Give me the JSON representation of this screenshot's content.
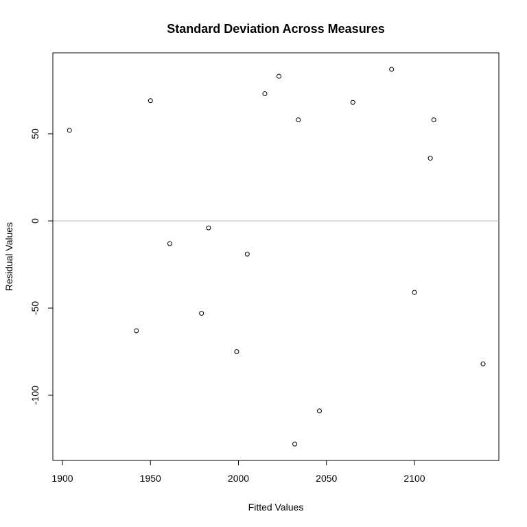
{
  "chart_data": {
    "type": "scatter",
    "title": "Standard Deviation Across Measures",
    "xlabel": "Fitted Values",
    "ylabel": "Residual Values",
    "xlim": [
      1900,
      2150
    ],
    "ylim": [
      -140,
      95
    ],
    "x_ticks": [
      1900,
      1950,
      2000,
      2050,
      2100
    ],
    "y_ticks": [
      -100,
      -50,
      0,
      50
    ],
    "x_tick_labels": [
      "1900",
      "1950",
      "2000",
      "2050",
      "2100"
    ],
    "y_tick_labels": [
      "-100",
      "-50",
      "0",
      "50"
    ],
    "reference_line": {
      "y": 0,
      "color": "#bebebe"
    },
    "grid": false,
    "points": [
      {
        "x": 1904,
        "y": 52
      },
      {
        "x": 1942,
        "y": -63
      },
      {
        "x": 1950,
        "y": 69
      },
      {
        "x": 1961,
        "y": -13
      },
      {
        "x": 1979,
        "y": -53
      },
      {
        "x": 1983,
        "y": -4
      },
      {
        "x": 1999,
        "y": -75
      },
      {
        "x": 2005,
        "y": -19
      },
      {
        "x": 2015,
        "y": 73
      },
      {
        "x": 2023,
        "y": 83
      },
      {
        "x": 2032,
        "y": -128
      },
      {
        "x": 2034,
        "y": 58
      },
      {
        "x": 2046,
        "y": -109
      },
      {
        "x": 2065,
        "y": 68
      },
      {
        "x": 2087,
        "y": 87
      },
      {
        "x": 2100,
        "y": -41
      },
      {
        "x": 2109,
        "y": 36
      },
      {
        "x": 2111,
        "y": 58
      },
      {
        "x": 2139,
        "y": -82
      }
    ]
  }
}
